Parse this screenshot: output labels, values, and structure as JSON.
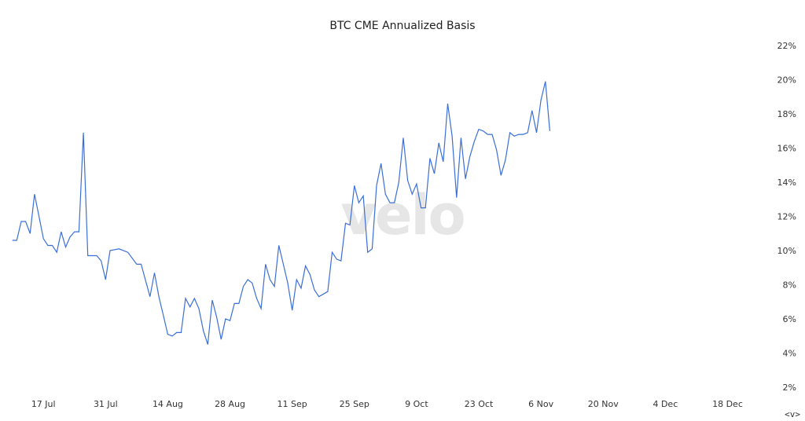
{
  "chart_data": {
    "type": "line",
    "title": "BTC CME Annualized Basis",
    "watermark": "velo",
    "y_ticks": [
      "2%",
      "4%",
      "6%",
      "8%",
      "10%",
      "12%",
      "14%",
      "16%",
      "18%",
      "20%",
      "22%"
    ],
    "ylim": [
      2,
      22
    ],
    "x_ticks": [
      {
        "label": "17 Jul",
        "day": 7
      },
      {
        "label": "31 Jul",
        "day": 21
      },
      {
        "label": "14 Aug",
        "day": 35
      },
      {
        "label": "28 Aug",
        "day": 49
      },
      {
        "label": "11 Sep",
        "day": 63
      },
      {
        "label": "25 Sep",
        "day": 77
      },
      {
        "label": "9 Oct",
        "day": 91
      },
      {
        "label": "23 Oct",
        "day": 105
      },
      {
        "label": "6 Nov",
        "day": 119
      },
      {
        "label": "20 Nov",
        "day": 133
      },
      {
        "label": "4 Dec",
        "day": 147
      },
      {
        "label": "18 Dec",
        "day": 161
      }
    ],
    "xlim": [
      -1,
      171
    ],
    "line_color": "#3b6fd8",
    "series": [
      {
        "values": [
          [
            0,
            10.6
          ],
          [
            1,
            10.6
          ],
          [
            2,
            11.7
          ],
          [
            3,
            11.7
          ],
          [
            4,
            11.0
          ],
          [
            5,
            13.3
          ],
          [
            6,
            12.0
          ],
          [
            7,
            10.7
          ],
          [
            8,
            10.3
          ],
          [
            9,
            10.3
          ],
          [
            10,
            9.9
          ],
          [
            11,
            11.1
          ],
          [
            12,
            10.2
          ],
          [
            13,
            10.8
          ],
          [
            14,
            11.1
          ],
          [
            15,
            11.1
          ],
          [
            16,
            16.9
          ],
          [
            17,
            9.7
          ],
          [
            18,
            9.7
          ],
          [
            19,
            9.7
          ],
          [
            20,
            9.4
          ],
          [
            21,
            8.3
          ],
          [
            22,
            10.0
          ],
          [
            24,
            10.1
          ],
          [
            26,
            9.9
          ],
          [
            28,
            9.2
          ],
          [
            29,
            9.2
          ],
          [
            31,
            7.3
          ],
          [
            32,
            8.7
          ],
          [
            33,
            7.3
          ],
          [
            34,
            6.2
          ],
          [
            35,
            5.1
          ],
          [
            36,
            5.0
          ],
          [
            37,
            5.2
          ],
          [
            38,
            5.2
          ],
          [
            39,
            7.2
          ],
          [
            40,
            6.7
          ],
          [
            41,
            7.2
          ],
          [
            42,
            6.6
          ],
          [
            43,
            5.3
          ],
          [
            44,
            4.5
          ],
          [
            45,
            7.1
          ],
          [
            46,
            6.1
          ],
          [
            47,
            4.8
          ],
          [
            48,
            6.0
          ],
          [
            49,
            5.9
          ],
          [
            50,
            6.9
          ],
          [
            51,
            6.9
          ],
          [
            52,
            7.9
          ],
          [
            53,
            8.3
          ],
          [
            54,
            8.1
          ],
          [
            55,
            7.2
          ],
          [
            56,
            6.6
          ],
          [
            57,
            9.2
          ],
          [
            58,
            8.3
          ],
          [
            59,
            7.9
          ],
          [
            60,
            10.3
          ],
          [
            61,
            9.2
          ],
          [
            62,
            8.1
          ],
          [
            63,
            6.5
          ],
          [
            64,
            8.3
          ],
          [
            65,
            7.8
          ],
          [
            66,
            9.1
          ],
          [
            67,
            8.6
          ],
          [
            68,
            7.7
          ],
          [
            69,
            7.3
          ],
          [
            71,
            7.6
          ],
          [
            72,
            9.9
          ],
          [
            73,
            9.5
          ],
          [
            74,
            9.4
          ],
          [
            75,
            11.6
          ],
          [
            76,
            11.5
          ],
          [
            77,
            13.8
          ],
          [
            78,
            12.8
          ],
          [
            79,
            13.2
          ],
          [
            80,
            9.9
          ],
          [
            81,
            10.1
          ],
          [
            82,
            13.8
          ],
          [
            83,
            15.1
          ],
          [
            84,
            13.3
          ],
          [
            85,
            12.8
          ],
          [
            86,
            12.8
          ],
          [
            87,
            14.0
          ],
          [
            88,
            16.6
          ],
          [
            89,
            14.1
          ],
          [
            90,
            13.3
          ],
          [
            91,
            13.9
          ],
          [
            92,
            12.5
          ],
          [
            93,
            12.5
          ],
          [
            94,
            15.4
          ],
          [
            95,
            14.5
          ],
          [
            96,
            16.3
          ],
          [
            97,
            15.2
          ],
          [
            98,
            18.6
          ],
          [
            99,
            16.7
          ],
          [
            100,
            13.1
          ],
          [
            101,
            16.6
          ],
          [
            102,
            14.2
          ],
          [
            103,
            15.5
          ],
          [
            104,
            16.4
          ],
          [
            105,
            17.1
          ],
          [
            106,
            17.0
          ],
          [
            107,
            16.8
          ],
          [
            108,
            16.8
          ],
          [
            109,
            15.9
          ],
          [
            110,
            14.4
          ],
          [
            111,
            15.3
          ],
          [
            112,
            16.9
          ],
          [
            113,
            16.7
          ],
          [
            114,
            16.8
          ],
          [
            115,
            16.8
          ],
          [
            116,
            16.9
          ],
          [
            117,
            18.2
          ],
          [
            118,
            16.9
          ],
          [
            119,
            18.8
          ],
          [
            120,
            19.9
          ],
          [
            121,
            17.0
          ]
        ]
      }
    ]
  },
  "nav": {
    "arrows": "<v>"
  }
}
